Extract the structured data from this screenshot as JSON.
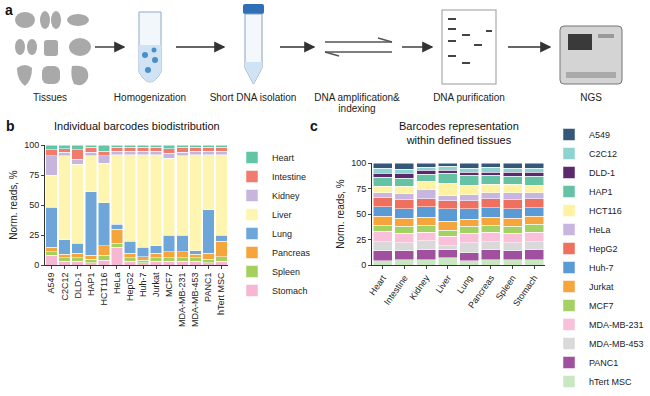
{
  "diagram": {
    "panel_label": "a",
    "steps": [
      "Tissues",
      "Homogenization",
      "Short DNA isolation",
      "DNA amplification& indexing",
      "DNA purification",
      "NGS"
    ]
  },
  "chart_data": [
    {
      "type": "bar",
      "stacked": true,
      "grid": false,
      "legend": "right",
      "panel_label": "b",
      "title": "Individual barcodes biodistribution",
      "ylabel": "Norm. reads, %",
      "categories": [
        "A549",
        "C2C12",
        "DLD-1",
        "HAP1",
        "HCT116",
        "HeLa",
        "HepG2",
        "Huh-7",
        "Jurkat",
        "MCF7",
        "MDA-MB-231",
        "MDA-MB-453",
        "PANC1",
        "hTert MSC"
      ],
      "ylim": [
        0,
        100
      ],
      "yticks": [
        0,
        25,
        50,
        75,
        100
      ],
      "series": [
        {
          "name": "Stomach",
          "color": "#f7b6d2",
          "values": [
            8,
            3,
            3,
            2,
            4,
            15,
            3,
            2,
            3,
            3,
            3,
            3,
            2,
            3
          ]
        },
        {
          "name": "Spleen",
          "color": "#a6d05e",
          "values": [
            3,
            3,
            3,
            3,
            4,
            3,
            3,
            2,
            3,
            3,
            3,
            3,
            3,
            4
          ]
        },
        {
          "name": "Pancreas",
          "color": "#f6a53d",
          "values": [
            4,
            3,
            4,
            3,
            8,
            12,
            4,
            3,
            4,
            5,
            5,
            3,
            5,
            13
          ]
        },
        {
          "name": "Lung",
          "color": "#6ea6d9",
          "values": [
            33,
            12,
            8,
            53,
            36,
            4,
            10,
            8,
            6,
            14,
            14,
            3,
            36,
            5
          ]
        },
        {
          "name": "Liver",
          "color": "#fdf5b0",
          "values": [
            27,
            70,
            66,
            30,
            33,
            58,
            72,
            77,
            76,
            64,
            66,
            80,
            46,
            67
          ]
        },
        {
          "name": "Kidney",
          "color": "#c6b6dd",
          "values": [
            16,
            3,
            4,
            3,
            6,
            3,
            3,
            3,
            3,
            4,
            3,
            3,
            3,
            3
          ]
        },
        {
          "name": "Intestine",
          "color": "#f17c6d",
          "values": [
            5,
            3,
            8,
            4,
            4,
            3,
            3,
            3,
            3,
            4,
            4,
            3,
            3,
            3
          ]
        },
        {
          "name": "Heart",
          "color": "#62c6a6",
          "values": [
            4,
            3,
            4,
            2,
            5,
            2,
            2,
            2,
            2,
            3,
            2,
            2,
            2,
            2
          ]
        }
      ]
    },
    {
      "type": "bar",
      "stacked": true,
      "grid": false,
      "legend": "right",
      "panel_label": "c",
      "title": [
        "Barcodes representation",
        "within defined tissues"
      ],
      "ylabel": "Norm. reads, %",
      "categories": [
        "Heart",
        "Intestine",
        "Kidney",
        "Liver",
        "Lung",
        "Pancreas",
        "Spleen",
        "Stomach"
      ],
      "ylim": [
        0,
        100
      ],
      "yticks": [
        0,
        25,
        50,
        75,
        100
      ],
      "series": [
        {
          "name": "hTert MSC",
          "color": "#c9e8c1",
          "values": [
            4,
            5,
            5,
            7,
            4,
            5,
            5,
            5
          ]
        },
        {
          "name": "PANC1",
          "color": "#a0509e",
          "values": [
            10,
            9,
            10,
            8,
            8,
            10,
            9,
            10
          ]
        },
        {
          "name": "MDA-MB-453",
          "color": "#d9d9d9",
          "values": [
            9,
            8,
            9,
            4,
            10,
            8,
            8,
            8
          ]
        },
        {
          "name": "MDA-MB-231",
          "color": "#f8c1d9",
          "values": [
            10,
            9,
            8,
            9,
            9,
            9,
            9,
            9
          ]
        },
        {
          "name": "MCF7",
          "color": "#a3d163",
          "values": [
            6,
            7,
            7,
            6,
            7,
            7,
            7,
            8
          ]
        },
        {
          "name": "Jurkat",
          "color": "#f6a43c",
          "values": [
            9,
            8,
            8,
            9,
            7,
            8,
            8,
            8
          ]
        },
        {
          "name": "Huh-7",
          "color": "#5b9bd5",
          "values": [
            9,
            9,
            10,
            12,
            10,
            9,
            9,
            8
          ]
        },
        {
          "name": "HepG2",
          "color": "#f0705f",
          "values": [
            9,
            9,
            8,
            8,
            8,
            9,
            9,
            9
          ]
        },
        {
          "name": "HeLa",
          "color": "#c8b5e0",
          "values": [
            5,
            6,
            9,
            5,
            6,
            6,
            7,
            6
          ]
        },
        {
          "name": "HCT116",
          "color": "#fff3a3",
          "values": [
            6,
            7,
            8,
            12,
            9,
            8,
            8,
            7
          ]
        },
        {
          "name": "HAP1",
          "color": "#66c2a5",
          "values": [
            9,
            8,
            7,
            10,
            10,
            9,
            8,
            9
          ]
        },
        {
          "name": "DLD-1",
          "color": "#5b2a6e",
          "values": [
            4,
            5,
            4,
            3,
            3,
            3,
            4,
            4
          ]
        },
        {
          "name": "C2C12",
          "color": "#8fd3d0",
          "values": [
            5,
            4,
            3,
            4,
            4,
            5,
            4,
            4
          ]
        },
        {
          "name": "A549",
          "color": "#34577a",
          "values": [
            5,
            6,
            4,
            3,
            5,
            4,
            5,
            5
          ]
        }
      ]
    }
  ]
}
